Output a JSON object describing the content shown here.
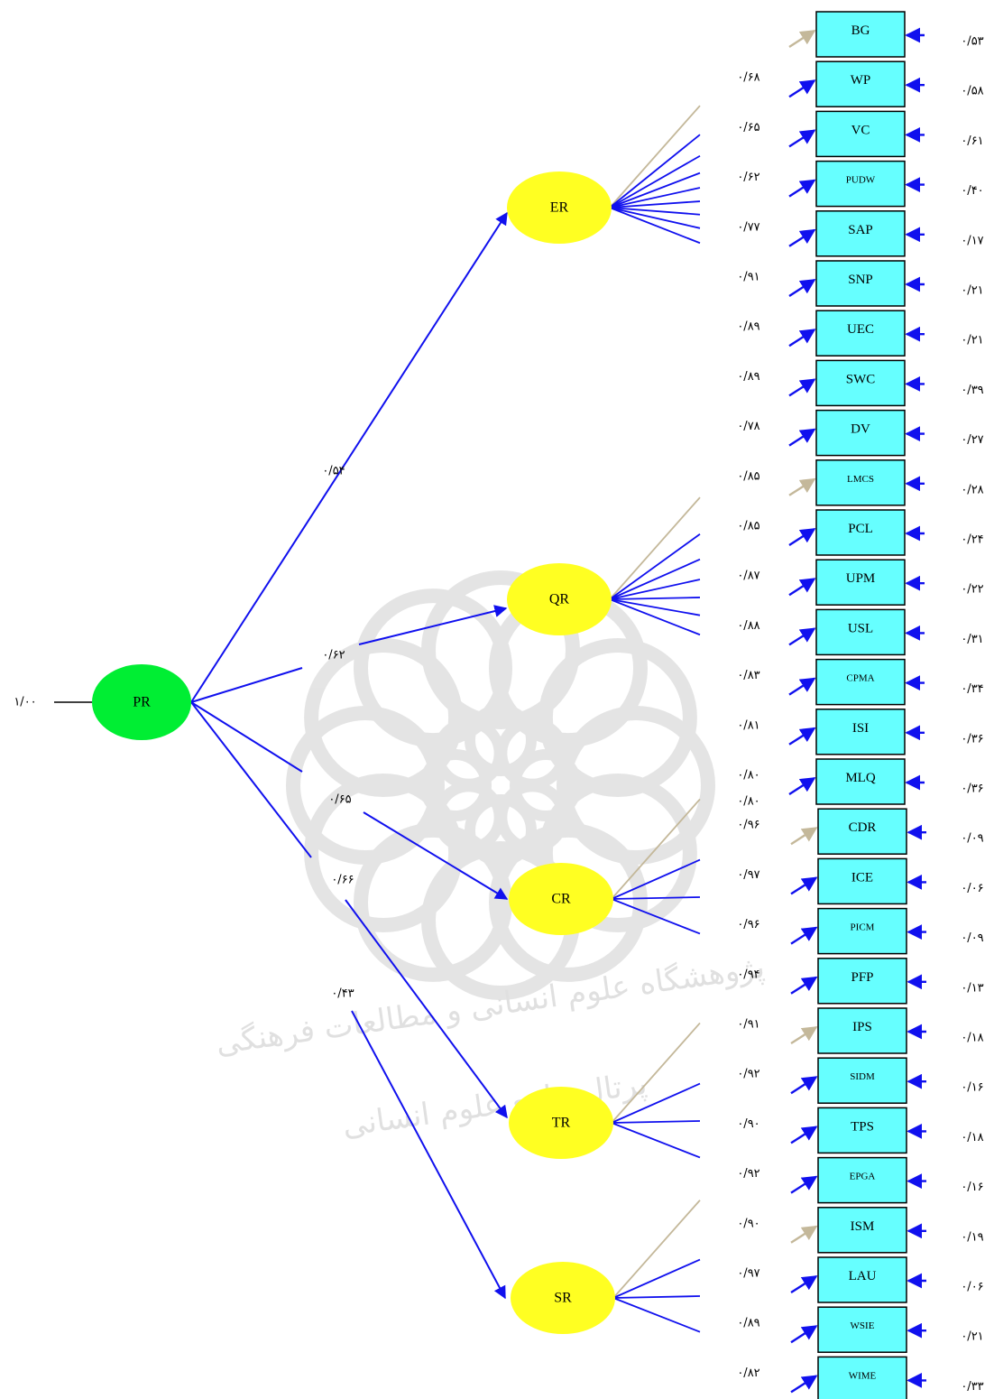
{
  "colors": {
    "blue": "#1010ee",
    "tan": "#c4b89a",
    "root": "#00ee33",
    "latent": "#ffff22",
    "box": "#66ffff",
    "watermark": "#cfcfcf"
  },
  "root": {
    "name": "PR",
    "input_value": "۱/۰۰"
  },
  "watermark": {
    "line1": "پژوهشگاه علوم انسانی و مطالعات فرهنگی",
    "line2": "پرتال جامع علوم انسانی"
  },
  "factors": [
    {
      "name": "ER",
      "loading": "۰/۵۴",
      "indicators": [
        {
          "name": "BG",
          "loading": "",
          "error": "۰/۵۳"
        },
        {
          "name": "WP",
          "loading": "۰/۶۸",
          "error": "۰/۵۸"
        },
        {
          "name": "VC",
          "loading": "۰/۶۵",
          "error": "۰/۶۱"
        },
        {
          "name": "PUDW",
          "loading": "۰/۶۲",
          "error": "۰/۴۰"
        },
        {
          "name": "SAP",
          "loading": "۰/۷۷",
          "error": "۰/۱۷"
        },
        {
          "name": "SNP",
          "loading": "۰/۹۱",
          "error": "۰/۲۱"
        },
        {
          "name": "UEC",
          "loading": "۰/۸۹",
          "error": "۰/۲۱"
        },
        {
          "name": "SWC",
          "loading": "۰/۸۹",
          "error": "۰/۳۹"
        },
        {
          "name": "DV",
          "loading": "۰/۷۸",
          "error": "۰/۲۷"
        }
      ]
    },
    {
      "name": "QR",
      "loading": "۰/۶۲",
      "indicators": [
        {
          "name": "LMCS",
          "loading": "۰/۸۵",
          "error": "۰/۲۸"
        },
        {
          "name": "PCL",
          "loading": "۰/۸۵",
          "error": "۰/۲۴"
        },
        {
          "name": "UPM",
          "loading": "۰/۸۷",
          "error": "۰/۲۲"
        },
        {
          "name": "USL",
          "loading": "۰/۸۸",
          "error": "۰/۳۱"
        },
        {
          "name": "CPMA",
          "loading": "۰/۸۳",
          "error": "۰/۳۴"
        },
        {
          "name": "ISI",
          "loading": "۰/۸۱",
          "error": "۰/۳۶"
        },
        {
          "name": "MLQ",
          "loading": "۰/۸۰",
          "error": "۰/۳۶"
        }
      ],
      "extra_loading": "۰/۸۰"
    },
    {
      "name": "CR",
      "loading": "۰/۶۵",
      "indicators": [
        {
          "name": "CDR",
          "loading": "۰/۹۶",
          "error": "۰/۰۹"
        },
        {
          "name": "ICE",
          "loading": "۰/۹۷",
          "error": "۰/۰۶"
        },
        {
          "name": "PICM",
          "loading": "۰/۹۶",
          "error": "۰/۰۹"
        },
        {
          "name": "PFP",
          "loading": "۰/۹۴",
          "error": "۰/۱۳"
        }
      ]
    },
    {
      "name": "TR",
      "loading": "۰/۶۶",
      "indicators": [
        {
          "name": "IPS",
          "loading": "۰/۹۱",
          "error": "۰/۱۸"
        },
        {
          "name": "SIDM",
          "loading": "۰/۹۲",
          "error": "۰/۱۶"
        },
        {
          "name": "TPS",
          "loading": "۰/۹۰",
          "error": "۰/۱۸"
        },
        {
          "name": "EPGA",
          "loading": "۰/۹۲",
          "error": "۰/۱۶"
        }
      ]
    },
    {
      "name": "SR",
      "loading": "۰/۴۳",
      "indicators": [
        {
          "name": "ISM",
          "loading": "۰/۹۰",
          "error": "۰/۱۹"
        },
        {
          "name": "LAU",
          "loading": "۰/۹۷",
          "error": "۰/۰۶"
        },
        {
          "name": "WSIE",
          "loading": "۰/۸۹",
          "error": "۰/۲۱"
        },
        {
          "name": "WIME",
          "loading": "۰/۸۲",
          "error": "۰/۳۳"
        }
      ]
    }
  ]
}
